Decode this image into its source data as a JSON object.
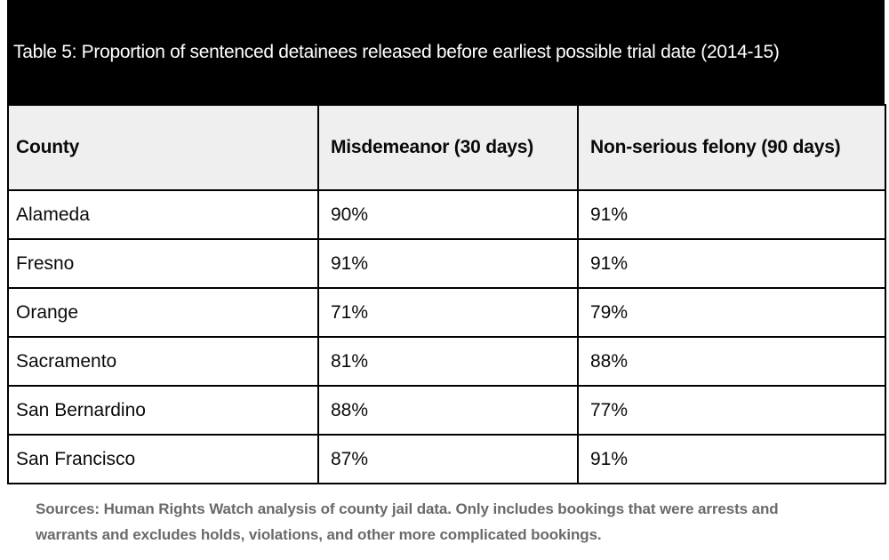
{
  "title": "Table 5: Proportion of sentenced detainees released before earliest possible trial date (2014-15)",
  "chart_data": {
    "type": "table",
    "title": "Table 5: Proportion of sentenced detainees released before earliest possible trial date (2014-15)",
    "columns": [
      "County",
      "Misdemeanor (30 days)",
      "Non-serious felony (90 days)"
    ],
    "rows": [
      [
        "Alameda",
        "90%",
        "91%"
      ],
      [
        "Fresno",
        "91%",
        "91%"
      ],
      [
        "Orange",
        "71%",
        "79%"
      ],
      [
        "Sacramento",
        "81%",
        "88%"
      ],
      [
        "San Bernardino",
        "88%",
        "77%"
      ],
      [
        "San Francisco",
        "87%",
        "91%"
      ]
    ],
    "values_numeric": {
      "misdemeanor_30_days_pct": [
        90,
        91,
        71,
        81,
        88,
        87
      ],
      "non_serious_felony_90_days_pct": [
        91,
        91,
        79,
        88,
        77,
        91
      ]
    },
    "source_note": "Sources: Human Rights Watch analysis of county jail data. Only includes bookings that were arrests and warrants and excludes holds, violations, and other more complicated bookings."
  },
  "footer": {
    "lines": [
      "Sources: Human Rights Watch analysis of county jail data. Only includes bookings that were arrests and",
      "warrants and excludes holds, violations, and other more complicated bookings."
    ]
  },
  "colors": {
    "title_bar_bg": "#000000",
    "title_text": "#ffffff",
    "header_row_bg": "#f0efef",
    "table_border": "#000000",
    "cell_text": "#0a0a0a",
    "footer_text": "#6a6a6a",
    "page_bg": "#ffffff"
  }
}
